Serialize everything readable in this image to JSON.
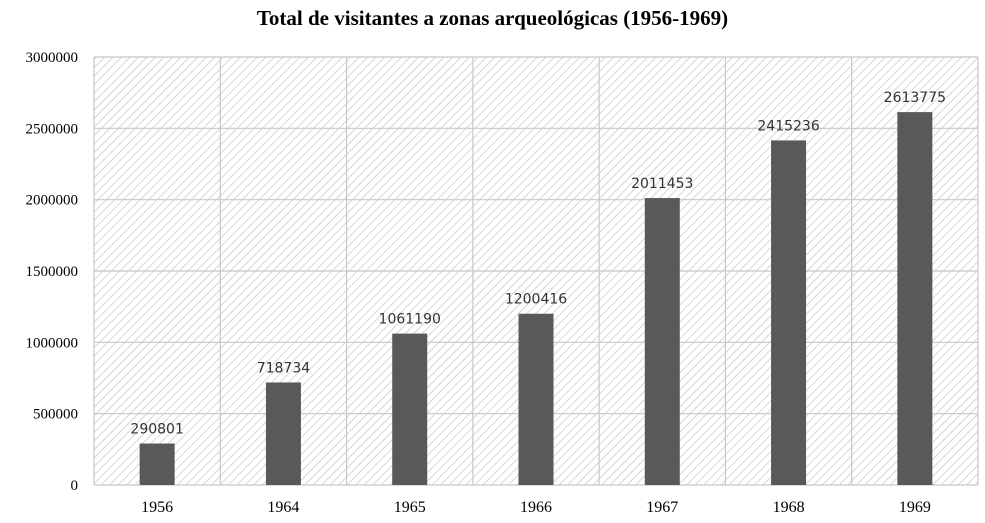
{
  "title": "Total de visitantes a zonas arqueológicas (1956-1969)",
  "colors": {
    "bar": "#595959",
    "grid": "#c8c8c8",
    "hatch": "#c6c6c6",
    "background": "#ffffff"
  },
  "chart_data": {
    "type": "bar",
    "title": "Total de visitantes a zonas arqueológicas (1956-1969)",
    "xlabel": "",
    "ylabel": "",
    "categories": [
      "1956",
      "1964",
      "1965",
      "1966",
      "1967",
      "1968",
      "1969"
    ],
    "values": [
      290801,
      718734,
      1061190,
      1200416,
      2011453,
      2415236,
      2613775
    ],
    "data_labels": [
      "290801",
      "718734",
      "1061190",
      "1200416",
      "2011453",
      "2415236",
      "2613775"
    ],
    "ylim": [
      0,
      3000000
    ],
    "yticks": [
      0,
      500000,
      1000000,
      1500000,
      2000000,
      2500000,
      3000000
    ],
    "ytick_labels": [
      "0",
      "500000",
      "1000000",
      "1500000",
      "2000000",
      "2500000",
      "3000000"
    ],
    "grid": true,
    "legend": "none"
  }
}
